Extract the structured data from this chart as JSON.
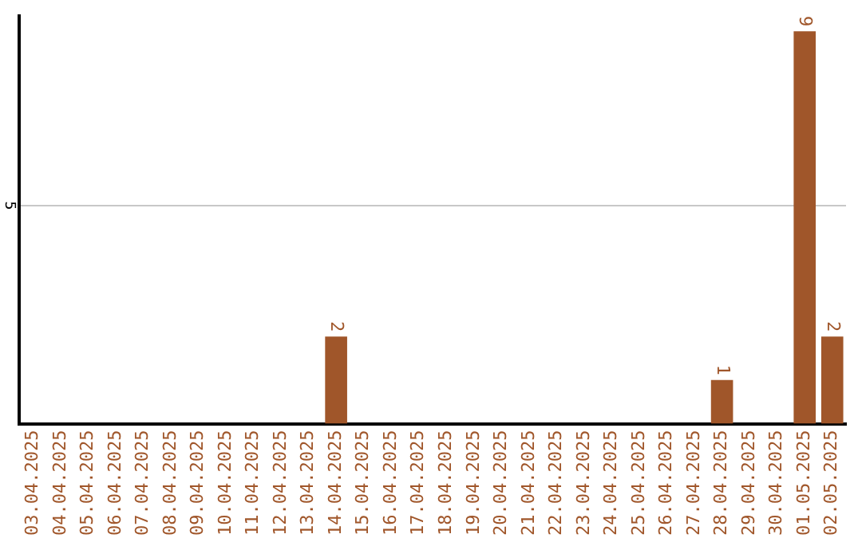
{
  "chart_data": {
    "type": "bar",
    "categories": [
      "03.04.2025",
      "04.04.2025",
      "05.04.2025",
      "06.04.2025",
      "07.04.2025",
      "08.04.2025",
      "09.04.2025",
      "10.04.2025",
      "11.04.2025",
      "12.04.2025",
      "13.04.2025",
      "14.04.2025",
      "15.04.2025",
      "16.04.2025",
      "17.04.2025",
      "18.04.2025",
      "19.04.2025",
      "20.04.2025",
      "21.04.2025",
      "22.04.2025",
      "23.04.2025",
      "24.04.2025",
      "25.04.2025",
      "26.04.2025",
      "27.04.2025",
      "28.04.2025",
      "29.04.2025",
      "30.04.2025",
      "01.05.2025",
      "02.05.2025"
    ],
    "values": [
      0,
      0,
      0,
      0,
      0,
      0,
      0,
      0,
      0,
      0,
      0,
      2,
      0,
      0,
      0,
      0,
      0,
      0,
      0,
      0,
      0,
      0,
      0,
      0,
      0,
      1,
      0,
      0,
      9,
      2
    ],
    "value_labels": [
      null,
      null,
      null,
      null,
      null,
      null,
      null,
      null,
      null,
      null,
      null,
      "2",
      null,
      null,
      null,
      null,
      null,
      null,
      null,
      null,
      null,
      null,
      null,
      null,
      null,
      "1",
      null,
      null,
      "9",
      "2"
    ],
    "color": "#a0562a",
    "ylim": [
      0,
      9.35
    ],
    "yticks": [
      5
    ],
    "grid": "y"
  }
}
